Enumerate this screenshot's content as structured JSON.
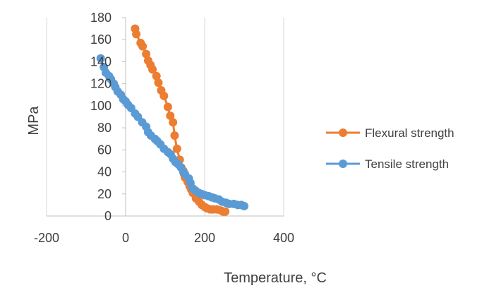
{
  "chart_data": {
    "type": "scatter",
    "xlabel": "Temperature, °C",
    "ylabel": "MPa",
    "xlim": [
      -200,
      400
    ],
    "ylim": [
      0,
      180
    ],
    "x_ticks": [
      -200,
      0,
      200,
      400
    ],
    "y_ticks": [
      0,
      20,
      40,
      60,
      80,
      100,
      120,
      140,
      160,
      180
    ],
    "grid": "vertical gridlines at x ticks",
    "legend_position": "right",
    "series": [
      {
        "name": "Flexural strength",
        "color": "#ED7D31",
        "style": "line-with-markers",
        "x": [
          24,
          27,
          38,
          43,
          52,
          57,
          63,
          68,
          78,
          83,
          90,
          97,
          107,
          113,
          120,
          124,
          130,
          137,
          141,
          146,
          148,
          150,
          157,
          162,
          166,
          170,
          178,
          186,
          193,
          201,
          206,
          214,
          221,
          231,
          241,
          247,
          252
        ],
        "y": [
          170,
          165,
          157,
          154,
          147,
          141,
          137,
          133,
          127,
          121,
          114,
          109,
          99,
          91,
          85,
          73,
          61,
          51,
          44,
          41,
          38,
          35,
          31,
          27,
          24,
          21,
          16,
          13,
          10,
          8,
          7,
          6,
          6,
          6,
          5,
          4,
          4
        ]
      },
      {
        "name": "Tensile strength",
        "color": "#5B9BD5",
        "style": "line-with-markers",
        "x": [
          -63,
          -55,
          -50,
          -42,
          -37,
          -30,
          -26,
          -20,
          -12,
          -6,
          0,
          6,
          14,
          24,
          31,
          42,
          52,
          57,
          64,
          74,
          80,
          88,
          97,
          107,
          114,
          120,
          126,
          133,
          140,
          146,
          150,
          160,
          164,
          170,
          177,
          185,
          192,
          200,
          210,
          218,
          226,
          236,
          244,
          254,
          262,
          274,
          284,
          293,
          300
        ],
        "y": [
          143,
          135,
          130,
          127,
          124,
          120,
          117,
          113,
          110,
          106,
          104,
          101,
          98,
          93,
          90,
          85,
          81,
          76,
          73,
          70,
          68,
          65,
          61,
          58,
          56,
          52,
          49,
          47,
          44,
          40,
          38,
          34,
          30,
          25,
          23,
          21,
          20,
          19,
          18,
          17,
          16,
          15,
          13,
          12,
          11,
          11,
          10,
          10,
          9
        ]
      }
    ]
  }
}
